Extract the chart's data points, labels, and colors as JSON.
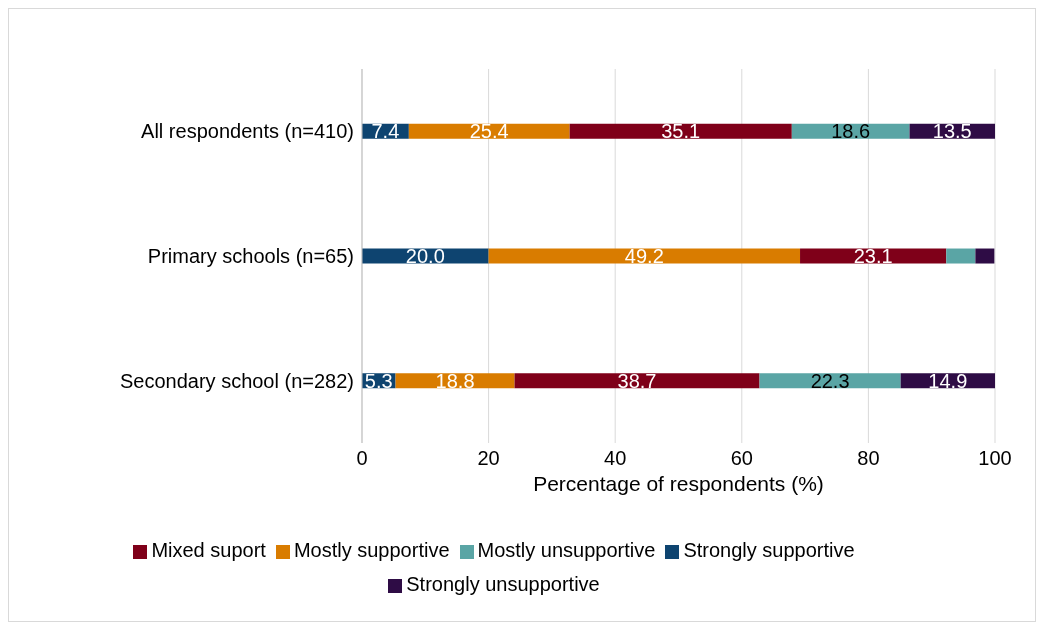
{
  "chart_data": {
    "type": "bar",
    "orientation": "horizontal",
    "stacked": true,
    "xlabel": "Percentage of respondents (%)",
    "categories": [
      "All respondents (n=410)",
      "Primary schools (n=65)",
      "Secondary school (n=282)"
    ],
    "series": [
      {
        "name": "Strongly supportive",
        "color": "#0e4470",
        "values": [
          7.4,
          20.0,
          5.3
        ],
        "value_labels": [
          "7.4",
          "20.0",
          "5.3"
        ]
      },
      {
        "name": "Mostly supportive",
        "color": "#d97c00",
        "values": [
          25.4,
          49.2,
          18.8
        ],
        "value_labels": [
          "25.4",
          "49.2",
          "18.8"
        ]
      },
      {
        "name": "Mixed suport",
        "color": "#7f0019",
        "values": [
          35.1,
          23.1,
          38.7
        ],
        "value_labels": [
          "35.1",
          "23.1",
          "38.7"
        ]
      },
      {
        "name": "Mostly unsupportive",
        "color": "#5aa5a5",
        "values": [
          18.6,
          4.6,
          22.3
        ],
        "value_labels": [
          "18.6",
          null,
          "22.3"
        ]
      },
      {
        "name": "Strongly unsupportive",
        "color": "#2e0c45",
        "values": [
          13.5,
          3.0,
          14.9
        ],
        "value_labels": [
          "13.5",
          null,
          "14.9"
        ]
      }
    ],
    "xlim": [
      0,
      100
    ],
    "xticks": [
      0,
      20,
      40,
      60,
      80,
      100
    ],
    "grid": "x",
    "legend": "bottom"
  }
}
